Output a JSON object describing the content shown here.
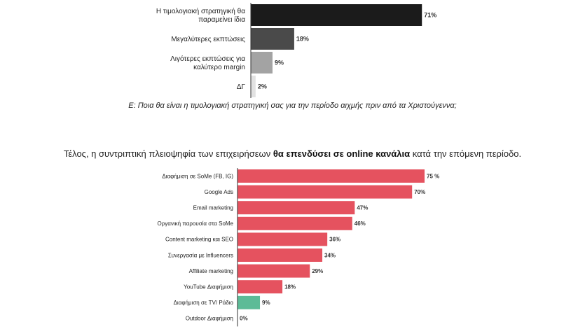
{
  "chart_data": [
    {
      "type": "bar",
      "orientation": "horizontal",
      "categories": [
        [
          "Η τιμολογιακή στρατηγική θα",
          "παραμείνει ίδια"
        ],
        [
          "Μεγαλύτερες εκπτώσεις"
        ],
        [
          "Λιγότερες εκπτώσεις για",
          "καλύτερο margin"
        ],
        [
          "ΔΓ"
        ]
      ],
      "values": [
        71,
        18,
        9,
        2
      ],
      "value_labels": [
        "71%",
        "18%",
        "9%",
        "2%"
      ],
      "colors": [
        "#1b1b1b",
        "#4a4a4a",
        "#a3a3a3",
        "#e2e2e2"
      ],
      "xlim": [
        0,
        100
      ],
      "grid": false
    },
    {
      "type": "bar",
      "orientation": "horizontal",
      "categories": [
        "Διαφήμιση σε SoMe (FB, IG)",
        "Google Ads",
        "Email marketing",
        "Οργανική παρουσία στα SoMe",
        "Content marketing και SEO",
        "Συνεργασία με Influencers",
        "Affiliate marketing",
        "YouTube Διαφήμιση",
        "Διαφήμιση σε TV/ Ράδιο",
        "Outdoor Διαφήμιση"
      ],
      "values": [
        75,
        70,
        47,
        46,
        36,
        34,
        29,
        18,
        9,
        0
      ],
      "value_labels": [
        "75 %",
        "70%",
        "47%",
        "46%",
        "36%",
        "34%",
        "29%",
        "18%",
        "9%",
        "0%"
      ],
      "colors": [
        "#e5525f",
        "#e5525f",
        "#e5525f",
        "#e5525f",
        "#e5525f",
        "#e5525f",
        "#e5525f",
        "#e5525f",
        "#5dbb97",
        "#e5525f"
      ],
      "xlim": [
        0,
        100
      ],
      "grid": false
    }
  ],
  "caption": "Ε: Ποια θα είναι η τιμολογιακή στρατηγική σας για την περίοδο αιχμής πριν από τα Χριστούγεννα;",
  "intro": {
    "before": "Τέλος, η συντριπτική πλειοψηφία των επιχειρήσεων ",
    "bold": "θα επενδύσει σε online κανάλια",
    "after": " κατά την επόμενη περίοδο."
  }
}
